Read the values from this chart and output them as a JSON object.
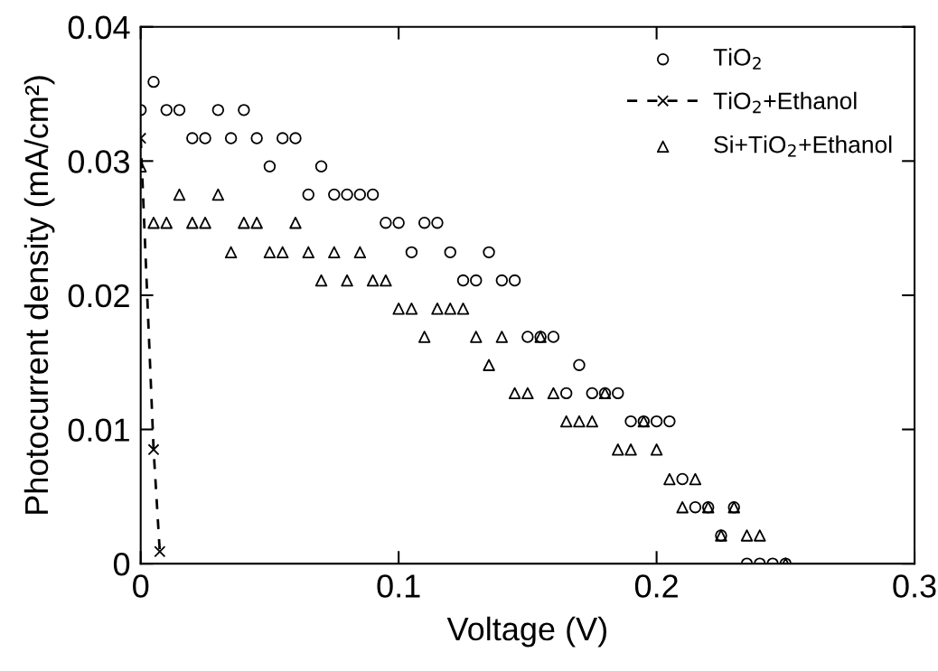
{
  "chart_data": {
    "type": "scatter",
    "xlabel": "Voltage (V)",
    "ylabel": "Photocurrent density (mA/cm²)",
    "xlim": [
      0,
      0.3
    ],
    "ylim": [
      0,
      0.04
    ],
    "xticks": [
      0,
      0.1,
      0.2,
      0.3
    ],
    "yticks": [
      0,
      0.01,
      0.02,
      0.03,
      0.04
    ],
    "grid": false,
    "legend": "top right",
    "series": [
      {
        "name": "TiO$_{2}$",
        "marker": "circle",
        "color": "#000000",
        "x": [
          0,
          0.005,
          0.01,
          0.015,
          0.03,
          0.04,
          0.02,
          0.025,
          0.035,
          0.045,
          0.055,
          0.06,
          0.05,
          0.07,
          0.065,
          0.075,
          0.08,
          0.085,
          0.09,
          0.095,
          0.1,
          0.11,
          0.115,
          0.105,
          0.12,
          0.135,
          0.125,
          0.13,
          0.14,
          0.145,
          0.15,
          0.155,
          0.16,
          0.17,
          0.165,
          0.175,
          0.18,
          0.185,
          0.19,
          0.195,
          0.2,
          0.205,
          0.21,
          0.215,
          0.22,
          0.23,
          0.225,
          0.235,
          0.24,
          0.245,
          0.25
        ],
        "values": [
          0.0338,
          0.0359,
          0.0338,
          0.0338,
          0.0338,
          0.0338,
          0.0317,
          0.0317,
          0.0317,
          0.0317,
          0.0317,
          0.0317,
          0.0296,
          0.0296,
          0.0275,
          0.0275,
          0.0275,
          0.0275,
          0.0275,
          0.0254,
          0.0254,
          0.0254,
          0.0254,
          0.0232,
          0.0232,
          0.0232,
          0.0211,
          0.0211,
          0.0211,
          0.0211,
          0.0169,
          0.0169,
          0.0169,
          0.0148,
          0.0127,
          0.0127,
          0.0127,
          0.0127,
          0.0106,
          0.0106,
          0.0106,
          0.0106,
          0.0063,
          0.0042,
          0.0042,
          0.0042,
          0.0021,
          0,
          0,
          0,
          0
        ]
      },
      {
        "name": "TiO$_{2}$+Ethanol",
        "type": "line",
        "marker": "cross",
        "line_style": "dashed",
        "color": "#000000",
        "x": [
          0,
          0.005,
          0.0074
        ],
        "values": [
          0.0317,
          0.0085,
          0.0009
        ]
      },
      {
        "name": "Si+TiO$_{2}$+Ethanol",
        "marker": "triangle",
        "color": "#000000",
        "x": [
          0,
          0.015,
          0.03,
          0.005,
          0.01,
          0.02,
          0.025,
          0.04,
          0.045,
          0.06,
          0.035,
          0.05,
          0.055,
          0.065,
          0.075,
          0.085,
          0.07,
          0.08,
          0.09,
          0.095,
          0.1,
          0.105,
          0.115,
          0.12,
          0.125,
          0.11,
          0.13,
          0.14,
          0.155,
          0.135,
          0.145,
          0.15,
          0.16,
          0.18,
          0.165,
          0.17,
          0.175,
          0.195,
          0.185,
          0.19,
          0.2,
          0.205,
          0.215,
          0.21,
          0.22,
          0.23,
          0.225,
          0.235,
          0.24,
          0.25
        ],
        "values": [
          0.0296,
          0.0275,
          0.0275,
          0.0254,
          0.0254,
          0.0254,
          0.0254,
          0.0254,
          0.0254,
          0.0254,
          0.0232,
          0.0232,
          0.0232,
          0.0232,
          0.0232,
          0.0232,
          0.0211,
          0.0211,
          0.0211,
          0.0211,
          0.019,
          0.019,
          0.019,
          0.019,
          0.019,
          0.0169,
          0.0169,
          0.0169,
          0.0169,
          0.0148,
          0.0127,
          0.0127,
          0.0127,
          0.0127,
          0.0106,
          0.0106,
          0.0106,
          0.0106,
          0.0085,
          0.0085,
          0.0085,
          0.0063,
          0.0063,
          0.0042,
          0.0042,
          0.0042,
          0.0021,
          0.0021,
          0.0021,
          0
        ]
      }
    ]
  }
}
